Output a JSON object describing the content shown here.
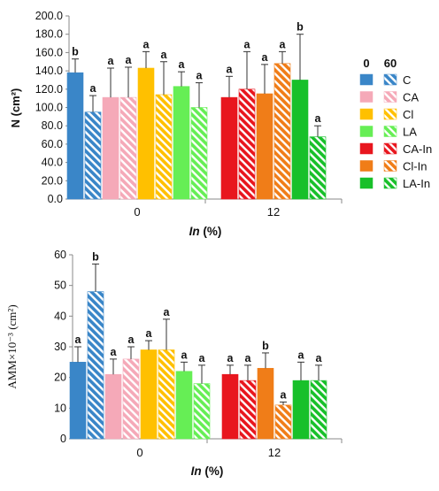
{
  "legend": {
    "headers": [
      "0",
      "60"
    ],
    "entries": [
      {
        "label": "C",
        "color": "#3a86c8"
      },
      {
        "label": "CA",
        "color": "#f5a9b8"
      },
      {
        "label": "Cl",
        "color": "#ffc000"
      },
      {
        "label": "LA",
        "color": "#66ee55"
      },
      {
        "label": "CA-In",
        "color": "#e8161e"
      },
      {
        "label": "Cl-In",
        "color": "#f07d18"
      },
      {
        "label": "LA-In",
        "color": "#18c02a"
      }
    ]
  },
  "chart_data": [
    {
      "type": "bar",
      "ylabel": "N (cm²)",
      "xlabel_italic": "In",
      "xlabel_rest": " (%)",
      "ylim": [
        0,
        200
      ],
      "ytick_step": 20,
      "ytick_decimals": 1,
      "x_groups": [
        "0",
        "12"
      ],
      "bars": [
        {
          "group": "0",
          "series": "C",
          "dose": "0",
          "value": 138,
          "error": 15,
          "sig": "b"
        },
        {
          "group": "0",
          "series": "C",
          "dose": "60",
          "value": 95,
          "error": 18,
          "sig": "a"
        },
        {
          "group": "0",
          "series": "CA",
          "dose": "0",
          "value": 111,
          "error": 32,
          "sig": "a"
        },
        {
          "group": "0",
          "series": "CA",
          "dose": "60",
          "value": 111,
          "error": 33,
          "sig": "a"
        },
        {
          "group": "0",
          "series": "Cl",
          "dose": "0",
          "value": 143,
          "error": 18,
          "sig": "a"
        },
        {
          "group": "0",
          "series": "Cl",
          "dose": "60",
          "value": 114,
          "error": 36,
          "sig": "a"
        },
        {
          "group": "0",
          "series": "LA",
          "dose": "0",
          "value": 123,
          "error": 16,
          "sig": "a"
        },
        {
          "group": "0",
          "series": "LA",
          "dose": "60",
          "value": 100,
          "error": 27,
          "sig": "a"
        },
        {
          "group": "12",
          "series": "CA-In",
          "dose": "0",
          "value": 111,
          "error": 23,
          "sig": "a"
        },
        {
          "group": "12",
          "series": "CA-In",
          "dose": "60",
          "value": 120,
          "error": 41,
          "sig": "a"
        },
        {
          "group": "12",
          "series": "Cl-In",
          "dose": "0",
          "value": 115,
          "error": 32,
          "sig": "a"
        },
        {
          "group": "12",
          "series": "Cl-In",
          "dose": "60",
          "value": 148,
          "error": 13,
          "sig": "a"
        },
        {
          "group": "12",
          "series": "LA-In",
          "dose": "0",
          "value": 130,
          "error": 50,
          "sig": "b"
        },
        {
          "group": "12",
          "series": "LA-In",
          "dose": "60",
          "value": 68,
          "error": 12,
          "sig": "a"
        }
      ]
    },
    {
      "type": "bar",
      "ylabel": "AMM×10⁻³ (cm²)",
      "xlabel_italic": "In",
      "xlabel_rest": " (%)",
      "ylim": [
        0,
        60
      ],
      "ytick_step": 10,
      "ytick_decimals": 0,
      "x_groups": [
        "0",
        "12"
      ],
      "bars": [
        {
          "group": "0",
          "series": "C",
          "dose": "0",
          "value": 25,
          "error": 5,
          "sig": "a"
        },
        {
          "group": "0",
          "series": "C",
          "dose": "60",
          "value": 48,
          "error": 9,
          "sig": "b"
        },
        {
          "group": "0",
          "series": "CA",
          "dose": "0",
          "value": 21,
          "error": 5,
          "sig": "a"
        },
        {
          "group": "0",
          "series": "CA",
          "dose": "60",
          "value": 26,
          "error": 4,
          "sig": "a"
        },
        {
          "group": "0",
          "series": "Cl",
          "dose": "0",
          "value": 29,
          "error": 3,
          "sig": "a"
        },
        {
          "group": "0",
          "series": "Cl",
          "dose": "60",
          "value": 29,
          "error": 10,
          "sig": "a"
        },
        {
          "group": "0",
          "series": "LA",
          "dose": "0",
          "value": 22,
          "error": 3,
          "sig": "a"
        },
        {
          "group": "0",
          "series": "LA",
          "dose": "60",
          "value": 18,
          "error": 6,
          "sig": "a"
        },
        {
          "group": "12",
          "series": "CA-In",
          "dose": "0",
          "value": 21,
          "error": 3,
          "sig": "a"
        },
        {
          "group": "12",
          "series": "CA-In",
          "dose": "60",
          "value": 19,
          "error": 5,
          "sig": "a"
        },
        {
          "group": "12",
          "series": "Cl-In",
          "dose": "0",
          "value": 23,
          "error": 5,
          "sig": "b"
        },
        {
          "group": "12",
          "series": "Cl-In",
          "dose": "60",
          "value": 11,
          "error": 1,
          "sig": "a"
        },
        {
          "group": "12",
          "series": "LA-In",
          "dose": "0",
          "value": 19,
          "error": 6,
          "sig": "a"
        },
        {
          "group": "12",
          "series": "LA-In",
          "dose": "60",
          "value": 19,
          "error": 5,
          "sig": "a"
        }
      ]
    }
  ]
}
